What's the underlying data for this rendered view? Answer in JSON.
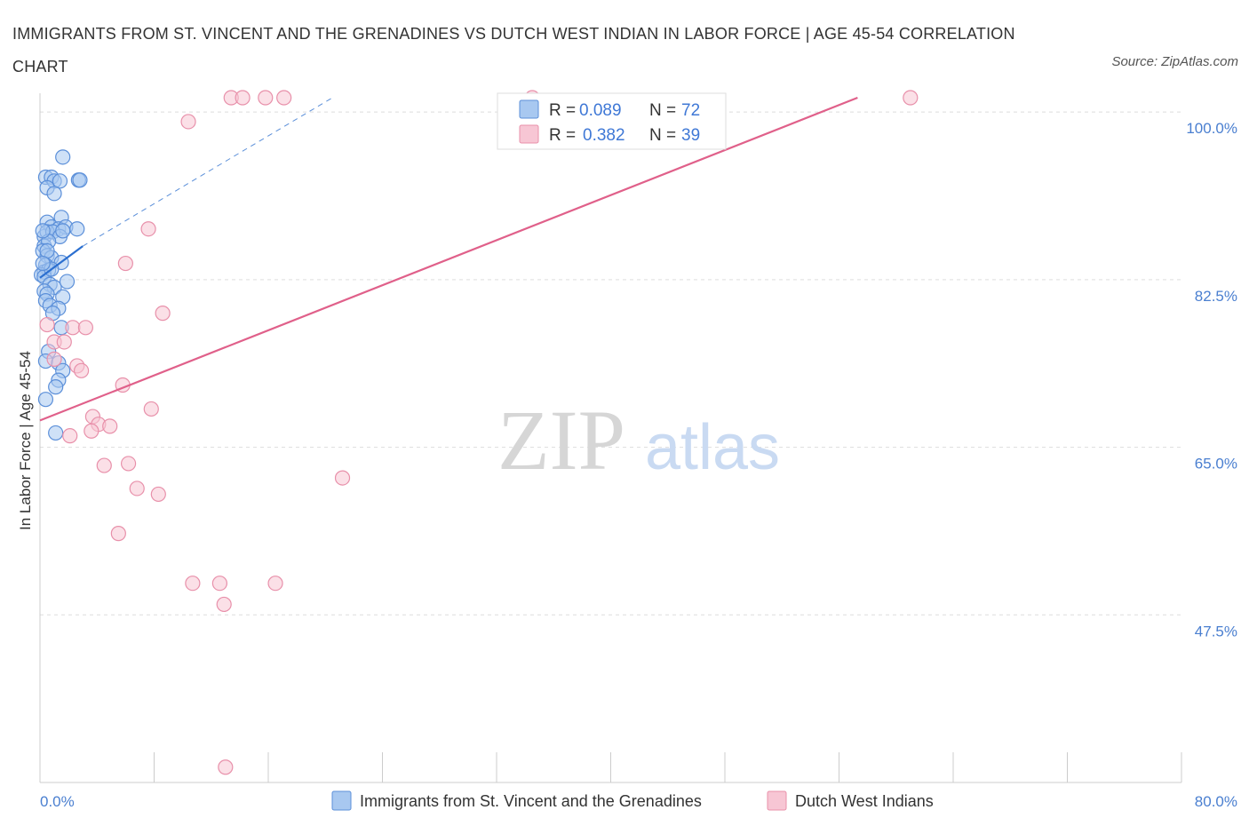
{
  "title": "IMMIGRANTS FROM ST. VINCENT AND THE GRENADINES VS DUTCH WEST INDIAN IN LABOR FORCE | AGE 45-54 CORRELATION CHART",
  "source": "Source: ZipAtlas.com",
  "watermark": {
    "zip": "ZIP",
    "atlas": "atlas"
  },
  "colors": {
    "blue_fill": "#a8c8f0",
    "blue_stroke": "#5b8fd9",
    "blue_line": "#2b6fd0",
    "pink_fill": "#f7c6d4",
    "pink_stroke": "#e890aa",
    "pink_line": "#e0608a",
    "tick_text": "#4a7fd0",
    "grid": "#dddddd"
  },
  "legend": {
    "r_label": "R =",
    "n_label": "N =",
    "entries": [
      {
        "r": "0.089",
        "n": "72"
      },
      {
        "r": "0.382",
        "n": "39"
      }
    ]
  },
  "chart_data": {
    "type": "scatter",
    "title": "IMMIGRANTS FROM ST. VINCENT AND THE GRENADINES VS DUTCH WEST INDIAN IN LABOR FORCE | AGE 45-54 CORRELATION CHART",
    "xlabel": "",
    "ylabel": "In Labor Force | Age 45-54",
    "xlim": [
      0,
      80
    ],
    "ylim": [
      30,
      101.5
    ],
    "x_tick_labels": [
      "0.0%",
      "80.0%"
    ],
    "y_ticks": [
      47.5,
      65.0,
      82.5,
      100.0
    ],
    "y_tick_labels": [
      "47.5%",
      "65.0%",
      "82.5%",
      "100.0%"
    ],
    "grid": true,
    "legend_position": "top-center",
    "series": [
      {
        "name": "Immigrants from St. Vincent and the Grenadines",
        "r": 0.089,
        "n": 72,
        "trend": {
          "x": [
            0.0,
            3.0
          ],
          "y": [
            82.7,
            86.0
          ]
        },
        "trend_dashed": {
          "x": [
            3.0,
            20.5
          ],
          "y": [
            86.0,
            101.5
          ]
        },
        "points": [
          [
            1.6,
            95.3
          ],
          [
            0.4,
            93.2
          ],
          [
            0.8,
            93.2
          ],
          [
            1.0,
            92.8
          ],
          [
            1.4,
            92.8
          ],
          [
            2.7,
            92.9
          ],
          [
            2.8,
            92.9
          ],
          [
            0.5,
            92.1
          ],
          [
            1.0,
            91.5
          ],
          [
            1.5,
            89.0
          ],
          [
            0.5,
            88.5
          ],
          [
            0.8,
            88.0
          ],
          [
            1.3,
            87.8
          ],
          [
            1.8,
            88.0
          ],
          [
            2.6,
            87.8
          ],
          [
            0.3,
            87.0
          ],
          [
            0.5,
            87.5
          ],
          [
            0.9,
            87.5
          ],
          [
            1.4,
            87.0
          ],
          [
            1.6,
            87.6
          ],
          [
            0.3,
            86.0
          ],
          [
            0.6,
            86.5
          ],
          [
            0.2,
            85.5
          ],
          [
            0.5,
            85.0
          ],
          [
            0.8,
            84.8
          ],
          [
            0.4,
            84.0
          ],
          [
            0.3,
            83.3
          ],
          [
            1.5,
            84.3
          ],
          [
            0.6,
            83.5
          ],
          [
            0.1,
            83.0
          ],
          [
            0.3,
            82.8
          ],
          [
            0.7,
            82.0
          ],
          [
            1.0,
            81.7
          ],
          [
            1.9,
            82.3
          ],
          [
            0.3,
            81.3
          ],
          [
            0.5,
            81.0
          ],
          [
            1.6,
            80.7
          ],
          [
            0.4,
            80.3
          ],
          [
            0.7,
            79.8
          ],
          [
            1.3,
            79.5
          ],
          [
            0.9,
            79.0
          ],
          [
            1.5,
            77.5
          ],
          [
            0.6,
            75.0
          ],
          [
            0.4,
            74.0
          ],
          [
            1.3,
            73.8
          ],
          [
            1.6,
            73.0
          ],
          [
            1.3,
            72.0
          ],
          [
            1.1,
            71.3
          ],
          [
            0.4,
            70.0
          ],
          [
            1.1,
            66.5
          ],
          [
            0.2,
            87.6
          ],
          [
            0.5,
            85.5
          ],
          [
            0.8,
            83.6
          ],
          [
            0.2,
            84.2
          ]
        ]
      },
      {
        "name": "Dutch West Indians",
        "r": 0.382,
        "n": 39,
        "trend": {
          "x": [
            0.0,
            57.3
          ],
          "y": [
            67.8,
            101.5
          ]
        },
        "points": [
          [
            13.4,
            101.5
          ],
          [
            14.2,
            101.5
          ],
          [
            15.8,
            101.5
          ],
          [
            17.1,
            101.5
          ],
          [
            34.5,
            101.5
          ],
          [
            61.0,
            101.5
          ],
          [
            10.4,
            99.0
          ],
          [
            7.6,
            87.8
          ],
          [
            6.0,
            84.2
          ],
          [
            8.6,
            79.0
          ],
          [
            0.5,
            77.8
          ],
          [
            2.3,
            77.5
          ],
          [
            3.2,
            77.5
          ],
          [
            1.0,
            76.0
          ],
          [
            1.7,
            76.0
          ],
          [
            1.0,
            74.2
          ],
          [
            2.6,
            73.5
          ],
          [
            2.9,
            73.0
          ],
          [
            5.8,
            71.5
          ],
          [
            7.8,
            69.0
          ],
          [
            3.7,
            68.2
          ],
          [
            4.1,
            67.4
          ],
          [
            4.9,
            67.2
          ],
          [
            3.6,
            66.7
          ],
          [
            2.1,
            66.2
          ],
          [
            4.5,
            63.1
          ],
          [
            6.2,
            63.3
          ],
          [
            6.8,
            60.7
          ],
          [
            8.3,
            60.1
          ],
          [
            21.2,
            61.8
          ],
          [
            5.5,
            56.0
          ],
          [
            10.7,
            50.8
          ],
          [
            12.6,
            50.8
          ],
          [
            16.5,
            50.8
          ],
          [
            12.9,
            48.6
          ],
          [
            13.0,
            31.6
          ]
        ]
      }
    ]
  },
  "bottom_legend": [
    {
      "label": "Immigrants from St. Vincent and the Grenadines"
    },
    {
      "label": "Dutch West Indians"
    }
  ]
}
